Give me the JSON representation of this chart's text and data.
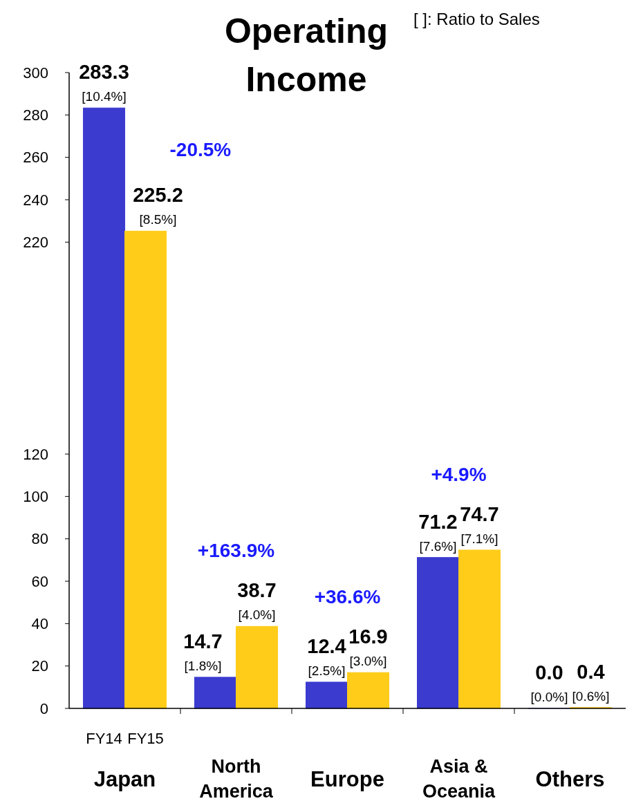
{
  "chart_data": {
    "type": "bar",
    "title": "Operating Income",
    "categories": [
      "Japan",
      "North America",
      "Europe",
      "Asia & Oceania",
      "Others"
    ],
    "series": [
      {
        "name": "FY14",
        "color": "#3b3bd0",
        "values": [
          283.3,
          14.7,
          12.4,
          71.2,
          0.0
        ],
        "value_labels": [
          "283.3 [10.4%]",
          "14.7 [1.8%]",
          "12.4 [2.5%]",
          "71.2 [7.6%]",
          "0.0 [0.0%]"
        ]
      },
      {
        "name": "FY15",
        "color": "#ffcc1a",
        "values": [
          225.2,
          38.7,
          16.9,
          74.7,
          0.4
        ],
        "value_labels": [
          "225.2 [8.5%]",
          "38.7 [4.0%]",
          "16.9 [3.0%]",
          "74.7 [7.1%]",
          "0.4 [0.6%]"
        ]
      }
    ],
    "ylim": [
      0,
      300
    ],
    "yticks": [
      0,
      20,
      40,
      60,
      80,
      100,
      120,
      220,
      240,
      260,
      280,
      300
    ],
    "annotations": [
      "[ ]: Ratio to Sales",
      "-20.5%",
      "+163.9%",
      "+36.6%",
      "+4.9%"
    ]
  }
}
